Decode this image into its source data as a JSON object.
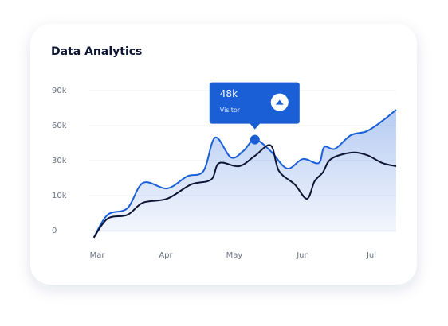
{
  "chart_data": {
    "type": "line",
    "title": "Data Analytics",
    "xlim": [
      -0.05,
      4.36
    ],
    "xticks": [
      {
        "value": 0,
        "label": "Mar"
      },
      {
        "value": 1,
        "label": "Apr"
      },
      {
        "value": 2,
        "label": "May"
      },
      {
        "value": 3,
        "label": "Jun"
      },
      {
        "value": 4,
        "label": "Jul"
      }
    ],
    "ylim": [
      -2000,
      90000
    ],
    "yticks": [
      0,
      {
        "value": 10000,
        "label": "10k"
      },
      {
        "value": 30000,
        "label": "30k"
      },
      {
        "value": 60000,
        "label": "60k"
      },
      {
        "value": 90000,
        "label": "90k"
      }
    ],
    "grid": true,
    "tooltip_text": "Visitor",
    "series": [
      {
        "name": "Visitor",
        "color": "#1a5fd6",
        "area": true,
        "x": [
          -0.05,
          0.15,
          0.44,
          0.67,
          1.02,
          1.31,
          1.55,
          1.72,
          1.95,
          2.13,
          2.3,
          2.53,
          2.77,
          3.0,
          3.23,
          3.31,
          3.47,
          3.7,
          3.93,
          4.16,
          4.36
        ],
        "values": [
          -2000,
          4500,
          6400,
          17300,
          14100,
          21000,
          24100,
          49800,
          32700,
          38200,
          48000,
          38200,
          25500,
          31400,
          28600,
          41600,
          40200,
          51800,
          55200,
          64100,
          73600
        ],
        "value_labels": [
          null,
          null,
          null,
          null,
          null,
          null,
          null,
          null,
          null,
          null,
          "48k",
          null,
          null,
          null,
          null,
          null,
          null,
          null,
          null,
          null,
          null
        ]
      },
      {
        "color": "#0d1533",
        "x": [
          -0.05,
          0.15,
          0.44,
          0.67,
          1.02,
          1.37,
          1.66,
          1.78,
          2.07,
          2.3,
          2.53,
          2.65,
          2.88,
          3.06,
          3.17,
          3.29,
          3.41,
          3.7,
          3.93,
          4.16,
          4.36
        ],
        "values": [
          -2000,
          3400,
          4500,
          8000,
          9100,
          16400,
          19100,
          28600,
          26800,
          34100,
          43000,
          24100,
          16400,
          9100,
          18200,
          23200,
          31400,
          36800,
          34800,
          28600,
          26800
        ]
      }
    ]
  }
}
